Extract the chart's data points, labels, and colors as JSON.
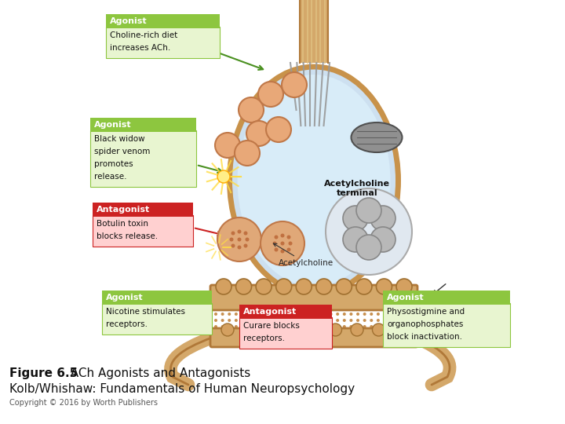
{
  "title_bold": "Figure 6.5",
  "title_regular": "  ACh Agonists and Antagonists",
  "subtitle": "Kolb/Whishaw: Fundamentals of Human Neuropsychology",
  "copyright": "Copyright © 2016 by Worth Publishers",
  "bg_color": "#ffffff",
  "agonist_color": "#8dc63f",
  "agonist_bg": "#e8f5d0",
  "antagonist_color": "#cc2222",
  "antagonist_bg": "#ffd0d0",
  "cell_fill": "#cde0f0",
  "cell_outline": "#c8924a",
  "axon_fill": "#d4a86a",
  "axon_dark": "#b07838",
  "vesicle_fill": "#e8a878",
  "vesicle_edge": "#c07848",
  "mito_fill": "#909090",
  "mito_edge": "#505050",
  "sphere_fill": "#b8b8b8",
  "sphere_edge": "#888888",
  "receptor_fill": "#d4a060",
  "receptor_edge": "#a07030",
  "dendrite_fill": "#c8924a",
  "synapse_dot": "#c89050",
  "green_arrow": "#4a9020",
  "red_arrow": "#cc2222",
  "black_arrow": "#222222"
}
